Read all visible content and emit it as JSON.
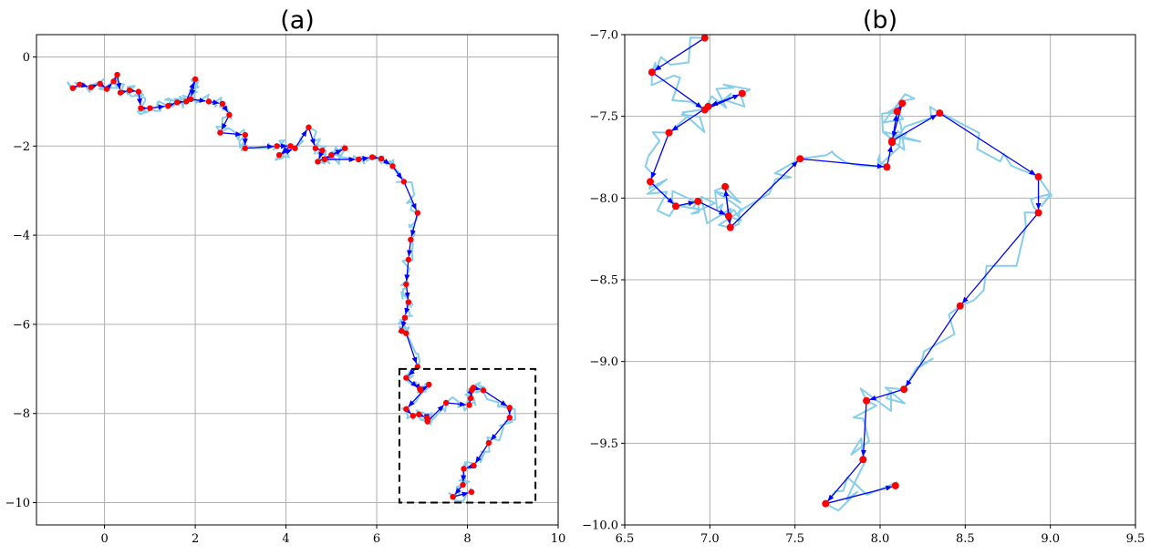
{
  "chart_data": [
    {
      "id": "a",
      "type": "line",
      "title": "(a)",
      "xlabel": "",
      "ylabel": "",
      "xlim": [
        -1.5,
        10
      ],
      "ylim": [
        -10.5,
        0.5
      ],
      "xticks": [
        0,
        2,
        4,
        6,
        8,
        10
      ],
      "yticks": [
        0,
        -2,
        -4,
        -6,
        -8,
        -10
      ],
      "xtick_labels": [
        "0",
        "2",
        "4",
        "6",
        "8",
        "10"
      ],
      "ytick_labels": [
        "0",
        "−2",
        "−4",
        "−6",
        "−8",
        "−10"
      ],
      "grid": true,
      "trace_color": "#87ceeb",
      "path_color": "#0000ff",
      "point_color": "#ff0000",
      "zoom_box": {
        "x": [
          6.5,
          9.5
        ],
        "y": [
          -10.0,
          -7.0
        ]
      },
      "series": [
        {
          "values": [
            [
              -0.7,
              -0.7
            ],
            [
              -0.55,
              -0.62
            ],
            [
              -0.3,
              -0.68
            ],
            [
              -0.1,
              -0.6
            ],
            [
              0.05,
              -0.72
            ],
            [
              0.2,
              -0.55
            ],
            [
              0.28,
              -0.4
            ],
            [
              0.35,
              -0.8
            ],
            [
              0.55,
              -0.75
            ],
            [
              0.75,
              -0.78
            ],
            [
              0.8,
              -1.15
            ],
            [
              1.0,
              -1.15
            ],
            [
              1.4,
              -1.1
            ],
            [
              1.6,
              -1.02
            ],
            [
              1.8,
              -1.0
            ],
            [
              2.0,
              -0.5
            ],
            [
              1.9,
              -0.95
            ],
            [
              2.3,
              -1.0
            ],
            [
              2.6,
              -1.05
            ],
            [
              2.75,
              -1.3
            ],
            [
              2.55,
              -1.7
            ],
            [
              3.1,
              -1.75
            ],
            [
              3.1,
              -2.05
            ],
            [
              3.8,
              -2.0
            ],
            [
              4.1,
              -2.0
            ],
            [
              3.85,
              -2.2
            ],
            [
              4.2,
              -2.05
            ],
            [
              4.5,
              -1.58
            ],
            [
              4.65,
              -2.05
            ],
            [
              4.8,
              -2.1
            ],
            [
              4.7,
              -2.35
            ],
            [
              5.0,
              -2.2
            ],
            [
              5.3,
              -2.05
            ],
            [
              4.85,
              -2.3
            ],
            [
              5.6,
              -2.3
            ],
            [
              5.9,
              -2.25
            ],
            [
              6.1,
              -2.28
            ],
            [
              6.35,
              -2.45
            ],
            [
              6.6,
              -2.8
            ],
            [
              6.9,
              -3.5
            ],
            [
              6.75,
              -4.1
            ],
            [
              6.7,
              -4.55
            ],
            [
              6.65,
              -5.1
            ],
            [
              6.7,
              -5.5
            ],
            [
              6.62,
              -5.85
            ],
            [
              6.55,
              -6.15
            ],
            [
              6.65,
              -6.2
            ],
            [
              6.9,
              -6.95
            ],
            [
              6.65,
              -7.2
            ],
            [
              6.95,
              -7.45
            ],
            [
              6.97,
              -7.48
            ],
            [
              7.15,
              -7.35
            ],
            [
              6.65,
              -7.9
            ],
            [
              6.8,
              -8.05
            ],
            [
              6.93,
              -8.02
            ],
            [
              7.11,
              -8.1
            ],
            [
              7.12,
              -8.18
            ],
            [
              7.53,
              -7.76
            ],
            [
              8.04,
              -7.81
            ],
            [
              8.07,
              -7.66
            ],
            [
              8.1,
              -7.47
            ],
            [
              8.13,
              -7.42
            ],
            [
              8.35,
              -7.48
            ],
            [
              8.93,
              -7.87
            ],
            [
              8.93,
              -8.09
            ],
            [
              8.47,
              -8.66
            ],
            [
              8.14,
              -9.17
            ],
            [
              7.92,
              -9.24
            ],
            [
              7.9,
              -9.6
            ],
            [
              7.68,
              -9.87
            ],
            [
              8.09,
              -9.76
            ]
          ]
        }
      ]
    },
    {
      "id": "b",
      "type": "line",
      "title": "(b)",
      "xlabel": "",
      "ylabel": "",
      "xlim": [
        6.5,
        9.5
      ],
      "ylim": [
        -10.0,
        -7.0
      ],
      "xticks": [
        6.5,
        7.0,
        7.5,
        8.0,
        8.5,
        9.0,
        9.5
      ],
      "yticks": [
        -7.0,
        -7.5,
        -8.0,
        -8.5,
        -9.0,
        -9.5,
        -10.0
      ],
      "xtick_labels": [
        "6.5",
        "7.0",
        "7.5",
        "8.0",
        "8.5",
        "9.0",
        "9.5"
      ],
      "ytick_labels": [
        "−7.0",
        "−7.5",
        "−8.0",
        "−8.5",
        "−9.0",
        "−9.5",
        "−10.0"
      ],
      "grid": true,
      "trace_color": "#87ceeb",
      "path_color": "#0000ff",
      "point_color": "#ff0000",
      "series": [
        {
          "values": [
            [
              6.97,
              -7.02
            ],
            [
              6.66,
              -7.23
            ],
            [
              6.97,
              -7.46
            ],
            [
              7.19,
              -7.36
            ],
            [
              6.99,
              -7.44
            ],
            [
              6.76,
              -7.6
            ],
            [
              6.65,
              -7.9
            ],
            [
              6.8,
              -8.05
            ],
            [
              6.93,
              -8.02
            ],
            [
              7.11,
              -8.11
            ],
            [
              7.09,
              -7.93
            ],
            [
              7.12,
              -8.18
            ],
            [
              7.53,
              -7.76
            ],
            [
              8.04,
              -7.81
            ],
            [
              8.07,
              -7.66
            ],
            [
              8.1,
              -7.47
            ],
            [
              8.13,
              -7.42
            ],
            [
              8.07,
              -7.65
            ],
            [
              8.35,
              -7.48
            ],
            [
              8.93,
              -7.87
            ],
            [
              8.93,
              -8.09
            ],
            [
              8.47,
              -8.66
            ],
            [
              8.14,
              -9.17
            ],
            [
              7.92,
              -9.24
            ],
            [
              7.9,
              -9.6
            ],
            [
              7.68,
              -9.87
            ],
            [
              8.09,
              -9.76
            ]
          ]
        }
      ]
    }
  ]
}
